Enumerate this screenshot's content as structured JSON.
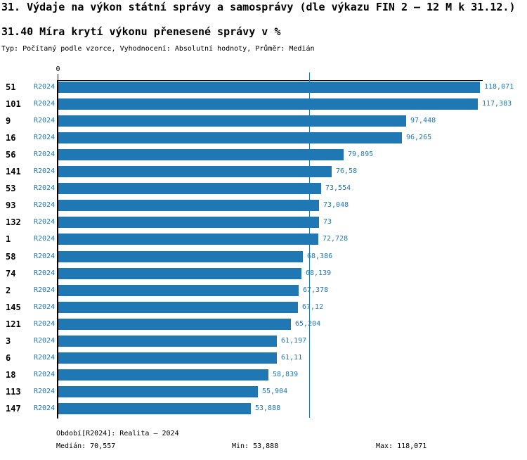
{
  "header": {
    "title": "31. Výdaje na výkon státní správy a samosprávy (dle výkazu FIN 2 – 12 M k 31.12.)",
    "subtitle": "31.40 Míra krytí výkonu přenesené správy v %",
    "meta": "Typ: Počítaný podle vzorce, Vyhodnocení: Absolutní hodnoty, Průměr: Medián"
  },
  "chart_data": {
    "type": "bar",
    "orientation": "horizontal",
    "title": "31.40 Míra krytí výkonu přenesené správy v %",
    "xlabel": "",
    "ylabel": "",
    "x_axis": {
      "zero_label": "0",
      "max_value": 118.071
    },
    "grid": false,
    "legend": "none",
    "period_label": "R2024",
    "categories": [
      "51",
      "101",
      "9",
      "16",
      "56",
      "141",
      "53",
      "93",
      "132",
      "1",
      "58",
      "74",
      "2",
      "145",
      "121",
      "3",
      "6",
      "18",
      "113",
      "147"
    ],
    "values": [
      118.071,
      117.383,
      97.448,
      96.265,
      79.895,
      76.58,
      73.554,
      73.048,
      73,
      72.728,
      68.386,
      68.139,
      67.378,
      67.12,
      65.204,
      61.197,
      61.11,
      58.839,
      55.904,
      53.888
    ],
    "value_labels": [
      "118,071",
      "117,383",
      "97,448",
      "96,265",
      "79,895",
      "76,58",
      "73,554",
      "73,048",
      "73",
      "72,728",
      "68,386",
      "68,139",
      "67,378",
      "67,12",
      "65,204",
      "61,197",
      "61,11",
      "58,839",
      "55,904",
      "53,888"
    ],
    "median_value": 70.557,
    "bar_color": "#1f77b4",
    "median_line_color": "#1f77b4",
    "label_color": "#1f77b4"
  },
  "footer": {
    "period_line": "Období[R2024]: Realita – 2024",
    "median": "Medián: 70,557",
    "min": "Min: 53,888",
    "max": "Max: 118,071"
  },
  "colors": {
    "bar": "#1f77b4",
    "blue_text": "#1f77b4",
    "axis": "#000000",
    "background": "#ffffff"
  }
}
